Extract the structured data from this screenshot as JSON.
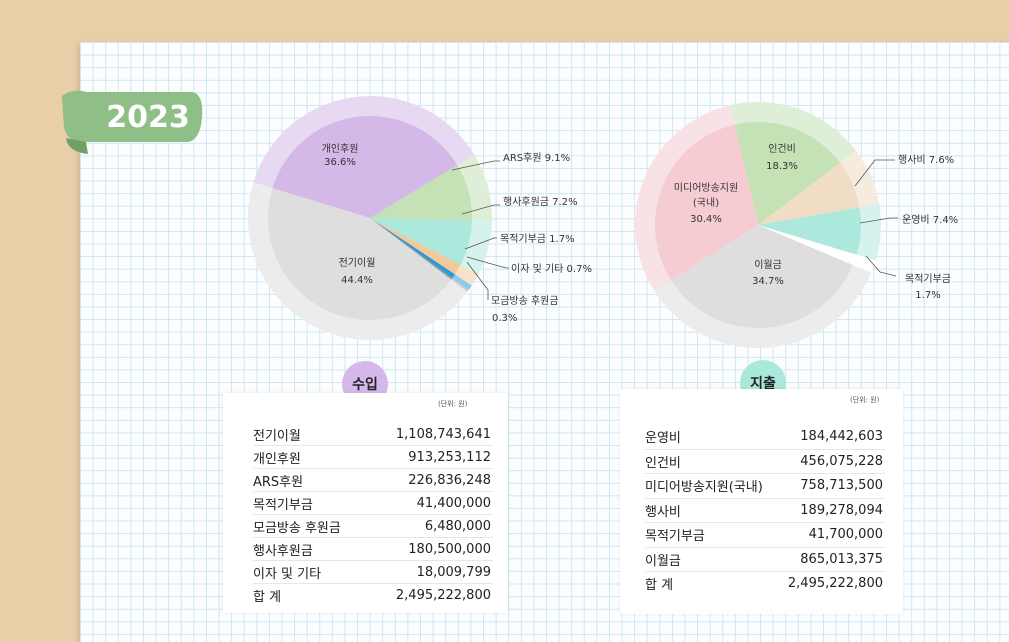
{
  "year": "2023",
  "income": {
    "title": "수입",
    "unit": "(단위: 원)",
    "rows": [
      {
        "label": "전기이월",
        "value": "1,108,743,641"
      },
      {
        "label": "개인후원",
        "value": "913,253,112"
      },
      {
        "label": "ARS후원",
        "value": "226,836,248"
      },
      {
        "label": "목적기부금",
        "value": "41,400,000"
      },
      {
        "label": "모금방송 후원금",
        "value": "6,480,000"
      },
      {
        "label": "행사후원금",
        "value": "180,500,000"
      },
      {
        "label": "이자 및 기타",
        "value": "18,009,799"
      },
      {
        "label": "합 계",
        "value": "2,495,222,800"
      }
    ]
  },
  "expense": {
    "title": "지출",
    "unit": "(단위: 원)",
    "rows": [
      {
        "label": "운영비",
        "value": "184,442,603"
      },
      {
        "label": "인건비",
        "value": "456,075,228"
      },
      {
        "label": "미디어방송지원(국내)",
        "value": "758,713,500"
      },
      {
        "label": "행사비",
        "value": "189,278,094"
      },
      {
        "label": "목적기부금",
        "value": "41,700,000"
      },
      {
        "label": "이월금",
        "value": "865,013,375"
      },
      {
        "label": "합 계",
        "value": "2,495,222,800"
      }
    ]
  },
  "chart_data": [
    {
      "type": "pie",
      "title": "수입",
      "slices": [
        {
          "label": "개인후원",
          "value": 36.6,
          "display": "36.6%",
          "color": "#d4b8e8",
          "halo": "#e7d9f2"
        },
        {
          "label": "ARS후원",
          "value": 9.1,
          "display": "ARS후원 9.1%",
          "color": "#c4e2b6",
          "halo": "#dfeed7"
        },
        {
          "label": "행사후원금",
          "value": 7.2,
          "display": "행사후원금 7.2%",
          "color": "#ace9dc",
          "halo": "#d5f3ec"
        },
        {
          "label": "목적기부금",
          "value": 1.7,
          "display": "목적기부금 1.7%",
          "color": "#f5c89a",
          "halo": "#f8e2cc"
        },
        {
          "label": "이자 및 기타",
          "value": 0.7,
          "display": "이자 및 기타 0.7%",
          "color": "#2b9ad6",
          "halo": "#8dcbee"
        },
        {
          "label": "모금방송 후원금",
          "value": 0.3,
          "display": "0.3%",
          "color": "#9a9a9a",
          "halo": "#cccccc"
        },
        {
          "label": "전기이월",
          "value": 44.4,
          "display": "44.4%",
          "color": "#dedede",
          "halo": "#ececec"
        }
      ]
    },
    {
      "type": "pie",
      "title": "지출",
      "slices": [
        {
          "label": "인건비",
          "value": 18.3,
          "display": "18.3%",
          "color": "#c4e2b6",
          "halo": "#dfeed7"
        },
        {
          "label": "행사비",
          "value": 7.6,
          "display": "행사비 7.6%",
          "color": "#f1dcc6",
          "halo": "#f6ebdf"
        },
        {
          "label": "운영비",
          "value": 7.4,
          "display": "운영비 7.4%",
          "color": "#ace9dc",
          "halo": "#d5f3ec"
        },
        {
          "label": "목적기부금",
          "value": 1.7,
          "display": "1.7%",
          "color": "#ffffff",
          "halo": "#ffffff"
        },
        {
          "label": "이월금",
          "value": 34.7,
          "display": "34.7%",
          "color": "#dedede",
          "halo": "#ececec"
        },
        {
          "label": "미디어방송지원(국내)",
          "value": 30.4,
          "display": "30.4%",
          "color": "#f6ccd3",
          "halo": "#f9e2e6"
        }
      ]
    }
  ],
  "colors": {
    "background": "#e8cfa8",
    "ribbon": "#8fbf86",
    "income_badge": "#d5b9ea",
    "expense_badge": "#a9e9dc"
  }
}
